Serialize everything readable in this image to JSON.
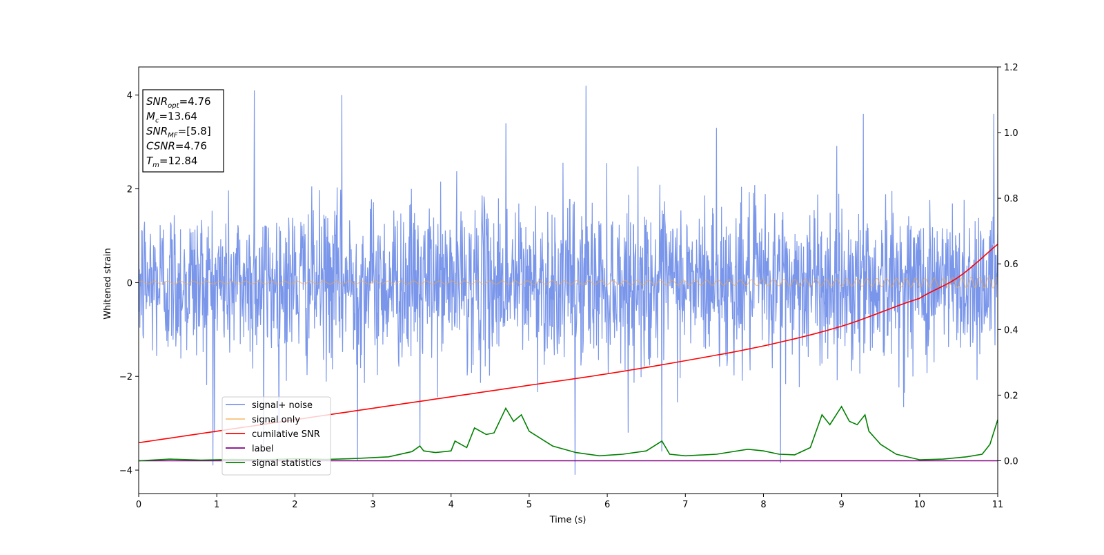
{
  "chart_data": {
    "type": "line",
    "xlabel": "Time (s)",
    "ylabel": "Whitened strain",
    "xlim": [
      0,
      11
    ],
    "ylim_left": [
      -4.5,
      4.6
    ],
    "ylim_right": [
      -0.1,
      1.2
    ],
    "x_ticks": [
      0,
      1,
      2,
      3,
      4,
      5,
      6,
      7,
      8,
      9,
      10,
      11
    ],
    "y_ticks_left": [
      -4,
      -2,
      0,
      2,
      4
    ],
    "y_ticks_right": [
      0.0,
      0.2,
      0.4,
      0.6,
      0.8,
      1.0,
      1.2
    ],
    "y_tick_labels_left": [
      "−4",
      "−2",
      "0",
      "2",
      "4"
    ],
    "y_tick_labels_right": [
      "0.0",
      "0.2",
      "0.4",
      "0.6",
      "0.8",
      "1.0",
      "1.2"
    ],
    "info_box": {
      "lines": [
        {
          "base": "SNR",
          "sub": "opt",
          "value": "=4.76"
        },
        {
          "base": "M",
          "sub": "c",
          "value": "=13.64"
        },
        {
          "base": "SNR",
          "sub": "MF",
          "value": "=[5.8]"
        },
        {
          "base": "CSNR",
          "sub": "",
          "value": "=4.76"
        },
        {
          "base": "T",
          "sub": "m",
          "value": "=12.84"
        }
      ]
    },
    "series": [
      {
        "name": "signal+ noise",
        "axis": "left",
        "color": "#4169e1",
        "style": "noise",
        "sigma": 0.85,
        "n_samples": 2200,
        "peaks": [
          {
            "x": 1.48,
            "y": 4.1
          },
          {
            "x": 1.6,
            "y": -3.5
          },
          {
            "x": 2.6,
            "y": 4.0
          },
          {
            "x": 2.8,
            "y": -3.8
          },
          {
            "x": 5.73,
            "y": 4.2
          },
          {
            "x": 5.59,
            "y": -4.1
          },
          {
            "x": 0.95,
            "y": -3.9
          },
          {
            "x": 4.7,
            "y": 3.4
          },
          {
            "x": 8.22,
            "y": -3.85
          },
          {
            "x": 9.28,
            "y": 3.6
          },
          {
            "x": 10.95,
            "y": 3.6
          },
          {
            "x": 7.4,
            "y": 3.3
          },
          {
            "x": 3.6,
            "y": -3.5
          },
          {
            "x": 6.7,
            "y": -3.6
          }
        ]
      },
      {
        "name": "signal only",
        "axis": "left",
        "color": "#f4a742",
        "style": "chirp",
        "amp_start": 0.03,
        "amp_end": 0.12,
        "freq_start": 6.0,
        "freq_end": 9.0
      },
      {
        "name": "cumilative SNR",
        "axis": "right",
        "color": "#ff0000",
        "x": [
          0,
          1,
          2,
          3,
          4,
          5,
          6,
          7,
          8,
          9,
          10,
          10.5,
          11
        ],
        "y": [
          0.055,
          0.09,
          0.125,
          0.16,
          0.195,
          0.23,
          0.265,
          0.305,
          0.35,
          0.41,
          0.495,
          0.56,
          0.66
        ]
      },
      {
        "name": "label",
        "axis": "right",
        "color": "#800080",
        "x": [
          0,
          11
        ],
        "y": [
          0.0,
          0.0
        ]
      },
      {
        "name": "signal statistics",
        "axis": "right",
        "color": "#008000",
        "x": [
          0,
          0.4,
          0.8,
          1.2,
          1.6,
          2.0,
          2.4,
          2.8,
          3.2,
          3.5,
          3.6,
          3.65,
          3.8,
          4.0,
          4.05,
          4.2,
          4.3,
          4.45,
          4.55,
          4.7,
          4.8,
          4.9,
          5.0,
          5.3,
          5.6,
          5.9,
          6.2,
          6.5,
          6.7,
          6.8,
          7.0,
          7.4,
          7.8,
          8.0,
          8.2,
          8.4,
          8.6,
          8.75,
          8.85,
          9.0,
          9.1,
          9.2,
          9.3,
          9.35,
          9.5,
          9.7,
          10.0,
          10.3,
          10.6,
          10.8,
          10.9,
          11.0
        ],
        "y": [
          0.0,
          0.005,
          0.002,
          0.004,
          0.003,
          0.006,
          0.004,
          0.007,
          0.012,
          0.028,
          0.045,
          0.03,
          0.025,
          0.03,
          0.06,
          0.04,
          0.1,
          0.08,
          0.085,
          0.16,
          0.12,
          0.14,
          0.09,
          0.045,
          0.025,
          0.015,
          0.02,
          0.03,
          0.06,
          0.02,
          0.015,
          0.02,
          0.035,
          0.03,
          0.02,
          0.018,
          0.04,
          0.14,
          0.11,
          0.165,
          0.12,
          0.11,
          0.14,
          0.09,
          0.05,
          0.02,
          0.003,
          0.005,
          0.012,
          0.02,
          0.05,
          0.125
        ]
      }
    ],
    "legend": {
      "placement": "lower-left",
      "entries": [
        "signal+ noise",
        "signal only",
        "cumilative SNR",
        "label",
        "signal statistics"
      ]
    }
  }
}
